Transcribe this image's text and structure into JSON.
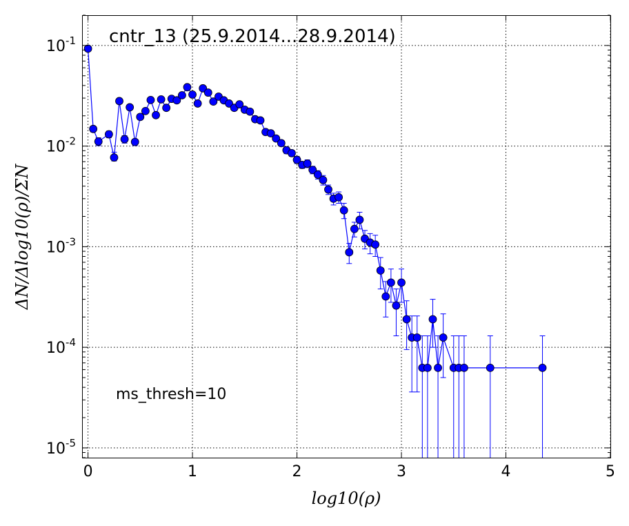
{
  "chart_data": {
    "type": "line",
    "title": "cntr_13 (25.9.2014...28.9.2014)",
    "annotation": "ms_thresh=10",
    "xlabel": "log10(ρ)",
    "ylabel": "ΔN/Δlog10(ρ)/ΣN",
    "xlim": [
      -0.05,
      5
    ],
    "ylim": [
      8e-06,
      0.2
    ],
    "yscale": "log",
    "grid": true,
    "x_ticks": [
      0,
      1,
      2,
      3,
      4,
      5
    ],
    "x_tick_labels": [
      "0",
      "1",
      "2",
      "3",
      "4",
      "5"
    ],
    "y_tick_labels": [
      {
        "value": 0.1,
        "base": "10",
        "exp": "-1"
      },
      {
        "value": 0.01,
        "base": "10",
        "exp": "-2"
      },
      {
        "value": 0.001,
        "base": "10",
        "exp": "-3"
      },
      {
        "value": 0.0001,
        "base": "10",
        "exp": "-4"
      },
      {
        "value": 1e-05,
        "base": "10",
        "exp": "-5"
      }
    ],
    "color": "#0000ff",
    "series": [
      {
        "x": [
          0.0,
          0.05,
          0.1,
          0.2,
          0.25,
          0.3,
          0.35,
          0.4,
          0.45,
          0.5,
          0.55,
          0.6,
          0.65,
          0.7,
          0.75,
          0.8,
          0.85,
          0.9,
          0.95,
          1.0,
          1.05,
          1.1,
          1.15,
          1.2,
          1.25,
          1.3,
          1.35,
          1.4,
          1.45,
          1.5,
          1.55,
          1.6,
          1.65,
          1.7,
          1.75,
          1.8,
          1.85,
          1.9,
          1.95,
          2.0,
          2.05,
          2.1,
          2.15,
          2.2,
          2.25,
          2.3,
          2.35,
          2.4,
          2.45,
          2.5,
          2.55,
          2.6,
          2.65,
          2.7,
          2.75,
          2.8,
          2.85,
          2.9,
          2.95,
          3.0,
          3.05,
          3.1,
          3.15,
          3.2,
          3.25,
          3.3,
          3.35,
          3.4,
          3.5,
          3.55,
          3.6,
          3.85,
          4.35
        ],
        "values": [
          0.093,
          0.0148,
          0.0111,
          0.0131,
          0.0077,
          0.028,
          0.0117,
          0.0243,
          0.011,
          0.0195,
          0.0223,
          0.0287,
          0.0203,
          0.0291,
          0.024,
          0.0295,
          0.0285,
          0.032,
          0.0385,
          0.0325,
          0.0265,
          0.0375,
          0.034,
          0.0277,
          0.031,
          0.0285,
          0.0265,
          0.024,
          0.026,
          0.023,
          0.022,
          0.0185,
          0.018,
          0.0138,
          0.0134,
          0.0119,
          0.0107,
          0.0091,
          0.0085,
          0.0073,
          0.0065,
          0.0067,
          0.0058,
          0.0052,
          0.0046,
          0.0037,
          0.003,
          0.0031,
          0.0023,
          0.00088,
          0.0015,
          0.00185,
          0.0012,
          0.0011,
          0.00105,
          0.00058,
          0.00032,
          0.00044,
          0.00026,
          0.00044,
          0.00019,
          0.000125,
          0.000125,
          6.25e-05,
          6.25e-05,
          0.00019,
          6.25e-05,
          0.000125,
          6.25e-05,
          6.25e-05,
          6.25e-05,
          6.25e-05,
          6.25e-05
        ],
        "err_upper": [
          0.098,
          0.0158,
          0.0121,
          0.0141,
          0.0087,
          0.0295,
          0.0127,
          0.0255,
          0.0117,
          0.0205,
          0.0233,
          0.03,
          0.0213,
          0.0303,
          0.025,
          0.0308,
          0.0297,
          0.0333,
          0.04,
          0.0338,
          0.0277,
          0.039,
          0.0353,
          0.0289,
          0.0323,
          0.0297,
          0.0276,
          0.025,
          0.0271,
          0.024,
          0.023,
          0.0194,
          0.0188,
          0.0146,
          0.0142,
          0.0126,
          0.0114,
          0.0098,
          0.0091,
          0.0079,
          0.007,
          0.0073,
          0.0063,
          0.0057,
          0.0051,
          0.0041,
          0.0034,
          0.0035,
          0.0027,
          0.00108,
          0.00175,
          0.0022,
          0.00145,
          0.00135,
          0.0013,
          0.00078,
          0.00045,
          0.0006,
          0.00038,
          0.0006,
          0.00029,
          0.000205,
          0.000205,
          0.00013,
          0.00013,
          0.0003,
          0.00013,
          0.000215,
          0.00013,
          0.00013,
          0.00013,
          0.00013,
          0.00013
        ],
        "err_lower": [
          0.088,
          0.0138,
          0.0101,
          0.0121,
          0.0071,
          0.0265,
          0.0107,
          0.0231,
          0.0101,
          0.0185,
          0.0213,
          0.0274,
          0.0193,
          0.0279,
          0.023,
          0.0282,
          0.0273,
          0.0307,
          0.037,
          0.0312,
          0.0253,
          0.036,
          0.0327,
          0.0265,
          0.0297,
          0.0273,
          0.0254,
          0.023,
          0.0249,
          0.022,
          0.021,
          0.0176,
          0.0172,
          0.013,
          0.0126,
          0.0112,
          0.01,
          0.0084,
          0.0079,
          0.0067,
          0.006,
          0.0061,
          0.0053,
          0.0047,
          0.0041,
          0.0033,
          0.0026,
          0.0027,
          0.0019,
          0.00068,
          0.00125,
          0.0015,
          0.00095,
          0.00085,
          0.0008,
          0.00038,
          0.0002,
          0.00028,
          0.00013,
          0.00028,
          9.5e-05,
          3.6e-05,
          3.6e-05,
          4e-06,
          4e-06,
          0.0001,
          4e-06,
          5e-05,
          4e-06,
          4e-06,
          4e-06,
          4e-06,
          4e-06
        ]
      }
    ]
  }
}
